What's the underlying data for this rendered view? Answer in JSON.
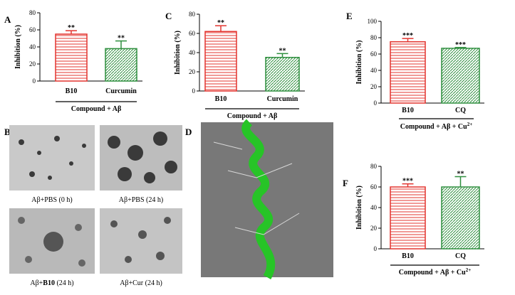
{
  "chart_data": [
    {
      "type": "bar",
      "label": "A",
      "ylabel": "Inhibition (%)",
      "categories": [
        "B10",
        "Curcumin"
      ],
      "values": [
        55,
        38
      ],
      "errors": [
        4,
        9
      ],
      "significance": [
        "**",
        "**"
      ],
      "colors": [
        "#e3342f",
        "#2f8f3f"
      ],
      "group_label": "Compound + Aβ",
      "ylim": [
        0,
        80
      ],
      "yticks": [
        0,
        20,
        40,
        60,
        80
      ]
    },
    {
      "type": "bar",
      "label": "C",
      "ylabel": "Inhibition (%)",
      "categories": [
        "B10",
        "Curcumin"
      ],
      "values": [
        62,
        35
      ],
      "errors": [
        6,
        4
      ],
      "significance": [
        "**",
        "**"
      ],
      "colors": [
        "#e3342f",
        "#2f8f3f"
      ],
      "group_label": "Compound + Aβ",
      "ylim": [
        0,
        80
      ],
      "yticks": [
        0,
        20,
        40,
        60,
        80
      ]
    },
    {
      "type": "bar",
      "label": "E",
      "ylabel": "Inhibition (%)",
      "categories": [
        "B10",
        "CQ"
      ],
      "values": [
        75,
        67
      ],
      "errors": [
        4,
        1
      ],
      "significance": [
        "***",
        "***"
      ],
      "colors": [
        "#e3342f",
        "#2f8f3f"
      ],
      "group_label": "Compound + Aβ  + Cu",
      "group_label_sup": "2+",
      "ylim": [
        0,
        100
      ],
      "yticks": [
        0,
        20,
        40,
        60,
        80,
        100
      ]
    },
    {
      "type": "bar",
      "label": "F",
      "ylabel": "Inhibition (%)",
      "categories": [
        "B10",
        "CQ"
      ],
      "values": [
        60,
        60
      ],
      "errors": [
        3,
        10
      ],
      "significance": [
        "***",
        "**"
      ],
      "colors": [
        "#e3342f",
        "#2f8f3f"
      ],
      "group_label": "Compound + Aβ + Cu",
      "group_label_sup": "2+",
      "ylim": [
        0,
        80
      ],
      "yticks": [
        0,
        20,
        40,
        60,
        80
      ]
    }
  ],
  "panels": {
    "B": {
      "label": "B",
      "captions": [
        [
          "Aβ+PBS (0 h)"
        ],
        [
          "Aβ+PBS (24 h)"
        ],
        [
          "Aβ+",
          "B10",
          " (24 h)"
        ],
        [
          "Aβ+Cur (24 h)"
        ]
      ]
    },
    "D": {
      "label": "D"
    }
  }
}
